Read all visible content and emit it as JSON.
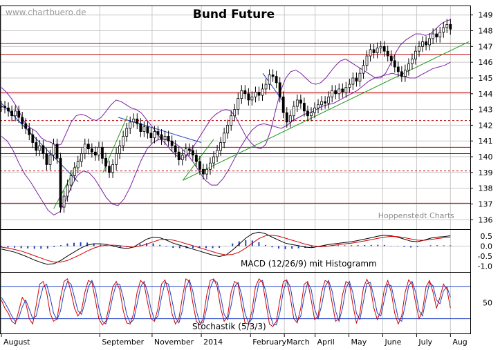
{
  "watermark": "www.chartbuero.de",
  "title": "Bund Future",
  "source_label": "Hoppenstedt Charts",
  "macd_label": "MACD (12/26/9) mit Histogramm",
  "stoch_label": "Stochastik (5/3/3)",
  "colors": {
    "background": "#ffffff",
    "grid": "#c8c8c8",
    "candle": "#000000",
    "bollinger": "#7a1fa2",
    "resistance": "#c00000",
    "trend_blue": "#1f3fbf",
    "trend_green": "#1a9a1a",
    "stoch_fast": "#d00000",
    "stoch_slow": "#1f3fbf",
    "histogram": "#1f3fbf"
  },
  "chart_data": [
    {
      "type": "candlestick",
      "title": "Bund Future",
      "y_ticks": [
        "149",
        "148",
        "147",
        "146",
        "145",
        "144",
        "143",
        "142",
        "141",
        "140",
        "139",
        "138",
        "137",
        "136"
      ],
      "ylim": [
        135.4,
        149.6
      ],
      "x_ticks": [
        "August",
        "September",
        "November",
        "2014",
        "February",
        "March",
        "April",
        "May",
        "June",
        "July",
        "Aug"
      ],
      "x_tick_pos": [
        0,
        32,
        49,
        65,
        81,
        92,
        102,
        113,
        124,
        135,
        146
      ],
      "x_range": [
        0,
        152
      ],
      "grid": true,
      "horizontal_lines": [
        {
          "value": 147.2,
          "style": "solid"
        },
        {
          "value": 146.5,
          "style": "solid"
        },
        {
          "value": 144.1,
          "style": "solid"
        },
        {
          "value": 142.3,
          "style": "dashed"
        },
        {
          "value": 140.6,
          "style": "solid"
        },
        {
          "value": 140.2,
          "style": "solid"
        },
        {
          "value": 139.1,
          "style": "dashed"
        },
        {
          "value": 137.05,
          "style": "solid"
        }
      ],
      "trend_lines": [
        {
          "color": "blue",
          "points": [
            [
              0,
              143.4
            ],
            [
              25,
              138.4
            ]
          ]
        },
        {
          "color": "blue",
          "points": [
            [
              38,
              142.5
            ],
            [
              65,
              140.9
            ]
          ]
        },
        {
          "color": "blue",
          "points": [
            [
              85,
              145.3
            ],
            [
              92,
              143.4
            ]
          ]
        },
        {
          "color": "green",
          "points": [
            [
              17,
              136.7
            ],
            [
              26,
              140.0
            ]
          ]
        },
        {
          "color": "green",
          "points": [
            [
              33,
              139.0
            ],
            [
              41,
              142.6
            ]
          ]
        },
        {
          "color": "green",
          "points": [
            [
              59,
              138.5
            ],
            [
              69,
              141.1
            ]
          ]
        },
        {
          "color": "green",
          "points": [
            [
              59,
              138.5
            ],
            [
              152,
              147.3
            ]
          ]
        }
      ],
      "close": [
        143.2,
        143.1,
        142.9,
        142.6,
        142.9,
        142.5,
        142.1,
        141.8,
        141.4,
        140.9,
        140.4,
        140.7,
        140.2,
        139.5,
        140.1,
        140.8,
        139.9,
        136.8,
        137.5,
        138.2,
        138.8,
        139.3,
        139.7,
        140.2,
        140.8,
        140.5,
        140.3,
        140.1,
        140.6,
        139.9,
        139.4,
        139.0,
        139.5,
        140.2,
        140.7,
        141.3,
        141.8,
        142.2,
        142.4,
        142.1,
        141.6,
        141.9,
        141.5,
        141.2,
        141.6,
        141.4,
        141.1,
        141.3,
        141.0,
        140.7,
        140.3,
        139.8,
        140.1,
        140.5,
        140.4,
        140.1,
        139.7,
        139.2,
        138.9,
        139.2,
        139.6,
        140.0,
        140.4,
        140.9,
        141.5,
        142.0,
        142.6,
        143.0,
        143.7,
        144.2,
        144.0,
        143.6,
        143.8,
        144.1,
        143.9,
        144.3,
        144.6,
        145.2,
        145.1,
        144.7,
        143.8,
        142.8,
        142.2,
        142.6,
        143.2,
        143.6,
        143.4,
        142.9,
        142.6,
        142.8,
        143.1,
        143.3,
        143.5,
        143.4,
        143.8,
        144.2,
        144.0,
        144.3,
        144.1,
        144.4,
        144.6,
        145.0,
        144.8,
        145.3,
        145.8,
        146.4,
        146.8,
        146.6,
        146.9,
        147.0,
        146.7,
        146.4,
        146.1,
        145.7,
        145.4,
        145.1,
        145.5,
        145.9,
        146.2,
        146.7,
        147.0,
        147.3,
        147.1,
        147.5,
        147.8,
        147.6,
        147.9,
        148.2,
        148.4,
        148.1
      ],
      "bollinger_upper": [
        144.4,
        144.1,
        143.7,
        143.2,
        142.6,
        142.0,
        141.8,
        141.6,
        141.2,
        141.0,
        140.9,
        140.7,
        140.8,
        141.5,
        142.2,
        142.6,
        142.7,
        142.6,
        142.4,
        142.3,
        142.5,
        142.9,
        143.3,
        143.6,
        143.5,
        143.3,
        143.1,
        143.0,
        142.8,
        142.4,
        142.0,
        141.6,
        141.1,
        140.8,
        140.4,
        140.1,
        139.9,
        140.0,
        140.4,
        140.9,
        141.4,
        141.9,
        142.4,
        142.7,
        142.9,
        143.0,
        142.9,
        142.5,
        141.9,
        141.3,
        140.9,
        140.6,
        140.5,
        140.8,
        141.7,
        143.0,
        144.2,
        145.0,
        145.4,
        145.5,
        145.3,
        145.0,
        144.7,
        144.6,
        144.7,
        145.0,
        145.4,
        145.8,
        146.1,
        146.2,
        146.0,
        145.8,
        145.6,
        145.4,
        145.2,
        145.0,
        145.0,
        145.3,
        145.9,
        146.6,
        147.1,
        147.4,
        147.6,
        147.8,
        147.8,
        147.7,
        147.8,
        148.1,
        148.4,
        148.6,
        148.7
      ],
      "bollinger_lower": [
        141.3,
        141.0,
        140.4,
        139.6,
        138.9,
        138.4,
        137.8,
        137.2,
        136.6,
        136.3,
        136.5,
        137.2,
        138.1,
        138.8,
        139.1,
        139.0,
        138.6,
        138.0,
        137.4,
        137.0,
        136.9,
        137.3,
        138.0,
        138.9,
        139.8,
        140.5,
        140.9,
        141.1,
        141.1,
        141.0,
        140.8,
        140.5,
        140.1,
        139.6,
        139.0,
        138.5,
        138.2,
        138.2,
        138.6,
        139.2,
        139.9,
        140.6,
        141.2,
        141.7,
        142.0,
        142.1,
        142.0,
        141.9,
        141.8,
        142.0,
        142.3,
        142.5,
        142.7,
        142.8,
        143.0,
        143.2,
        143.3,
        143.4,
        143.6,
        143.8,
        144.0,
        144.2,
        144.5,
        144.8,
        145.0,
        145.1,
        145.2,
        145.3,
        145.2,
        145.1,
        145.0,
        145.0,
        145.2,
        145.4,
        145.6,
        145.7,
        145.8,
        146.0
      ]
    },
    {
      "type": "line",
      "title": "MACD (12/26/9) mit Histogramm",
      "y_ticks": [
        "0.5",
        "0.0",
        "-0.5",
        "-1.0"
      ],
      "ylim": [
        -1.3,
        0.85
      ],
      "macd": [
        -0.15,
        -0.22,
        -0.3,
        -0.42,
        -0.55,
        -0.7,
        -0.82,
        -0.92,
        -0.88,
        -0.72,
        -0.5,
        -0.3,
        -0.1,
        0.05,
        0.12,
        0.12,
        0.08,
        0.0,
        -0.08,
        -0.12,
        -0.05,
        0.15,
        0.35,
        0.45,
        0.42,
        0.3,
        0.15,
        0.05,
        -0.05,
        -0.15,
        -0.25,
        -0.35,
        -0.45,
        -0.52,
        -0.45,
        -0.2,
        0.1,
        0.4,
        0.62,
        0.7,
        0.62,
        0.45,
        0.3,
        0.15,
        0.08,
        0.02,
        -0.05,
        -0.08,
        -0.02,
        0.05,
        0.1,
        0.14,
        0.18,
        0.22,
        0.28,
        0.35,
        0.42,
        0.5,
        0.55,
        0.52,
        0.45,
        0.35,
        0.25,
        0.22,
        0.3,
        0.4,
        0.45,
        0.48,
        0.52
      ],
      "signal": [
        -0.05,
        -0.1,
        -0.17,
        -0.25,
        -0.36,
        -0.48,
        -0.6,
        -0.72,
        -0.8,
        -0.8,
        -0.72,
        -0.58,
        -0.42,
        -0.25,
        -0.1,
        0.0,
        0.05,
        0.05,
        0.02,
        -0.03,
        -0.05,
        0.0,
        0.1,
        0.22,
        0.32,
        0.35,
        0.3,
        0.22,
        0.12,
        0.02,
        -0.08,
        -0.18,
        -0.28,
        -0.38,
        -0.44,
        -0.42,
        -0.3,
        -0.1,
        0.15,
        0.38,
        0.52,
        0.55,
        0.5,
        0.4,
        0.3,
        0.2,
        0.1,
        0.02,
        -0.03,
        -0.02,
        0.02,
        0.07,
        0.11,
        0.15,
        0.2,
        0.26,
        0.32,
        0.39,
        0.45,
        0.49,
        0.48,
        0.43,
        0.36,
        0.3,
        0.29,
        0.33,
        0.38,
        0.42,
        0.46
      ]
    },
    {
      "type": "line",
      "title": "Stochastik (5/3/3)",
      "y_ticks": [
        "50"
      ],
      "ylim": [
        0,
        100
      ],
      "levels": [
        80,
        20
      ],
      "fast": [
        55,
        40,
        30,
        15,
        10,
        35,
        60,
        50,
        20,
        10,
        45,
        85,
        90,
        70,
        30,
        15,
        20,
        60,
        90,
        95,
        70,
        40,
        25,
        35,
        70,
        92,
        88,
        55,
        20,
        8,
        15,
        45,
        80,
        90,
        75,
        35,
        12,
        10,
        30,
        70,
        92,
        85,
        50,
        20,
        15,
        40,
        85,
        93,
        70,
        30,
        10,
        20,
        60,
        95,
        90,
        50,
        15,
        8,
        20,
        65,
        92,
        95,
        80,
        40,
        15,
        25,
        70,
        90,
        85,
        45,
        12,
        10,
        35,
        80,
        95,
        88,
        50,
        10,
        5,
        15,
        55,
        90,
        93,
        60,
        20,
        12,
        40,
        85,
        90,
        55,
        18,
        25,
        70,
        92,
        88,
        50,
        15,
        20,
        65,
        90,
        85,
        45,
        12,
        30,
        78,
        94,
        80,
        40,
        18,
        35,
        75,
        92,
        70,
        30,
        10,
        25,
        70,
        93,
        85,
        50,
        20,
        35,
        80,
        92,
        70,
        40,
        60,
        85,
        75,
        40
      ],
      "slow": [
        60,
        50,
        38,
        25,
        15,
        22,
        42,
        55,
        38,
        20,
        25,
        55,
        80,
        85,
        60,
        30,
        18,
        35,
        70,
        90,
        85,
        60,
        35,
        28,
        50,
        80,
        92,
        75,
        40,
        15,
        10,
        30,
        62,
        85,
        85,
        60,
        28,
        12,
        18,
        48,
        80,
        90,
        70,
        38,
        18,
        25,
        60,
        88,
        85,
        55,
        22,
        12,
        35,
        78,
        93,
        72,
        35,
        12,
        12,
        40,
        78,
        93,
        88,
        62,
        28,
        18,
        45,
        80,
        88,
        65,
        30,
        12,
        20,
        55,
        88,
        92,
        70,
        32,
        10,
        8,
        32,
        72,
        92,
        80,
        42,
        15,
        25,
        62,
        88,
        75,
        38,
        20,
        45,
        80,
        92,
        72,
        35,
        15,
        40,
        78,
        90,
        68,
        30,
        18,
        52,
        86,
        88,
        62,
        30,
        25,
        55,
        85,
        82,
        52,
        20,
        15,
        45,
        82,
        90,
        70,
        35,
        25,
        58,
        88,
        82,
        55,
        48,
        72,
        80,
        60
      ]
    }
  ]
}
